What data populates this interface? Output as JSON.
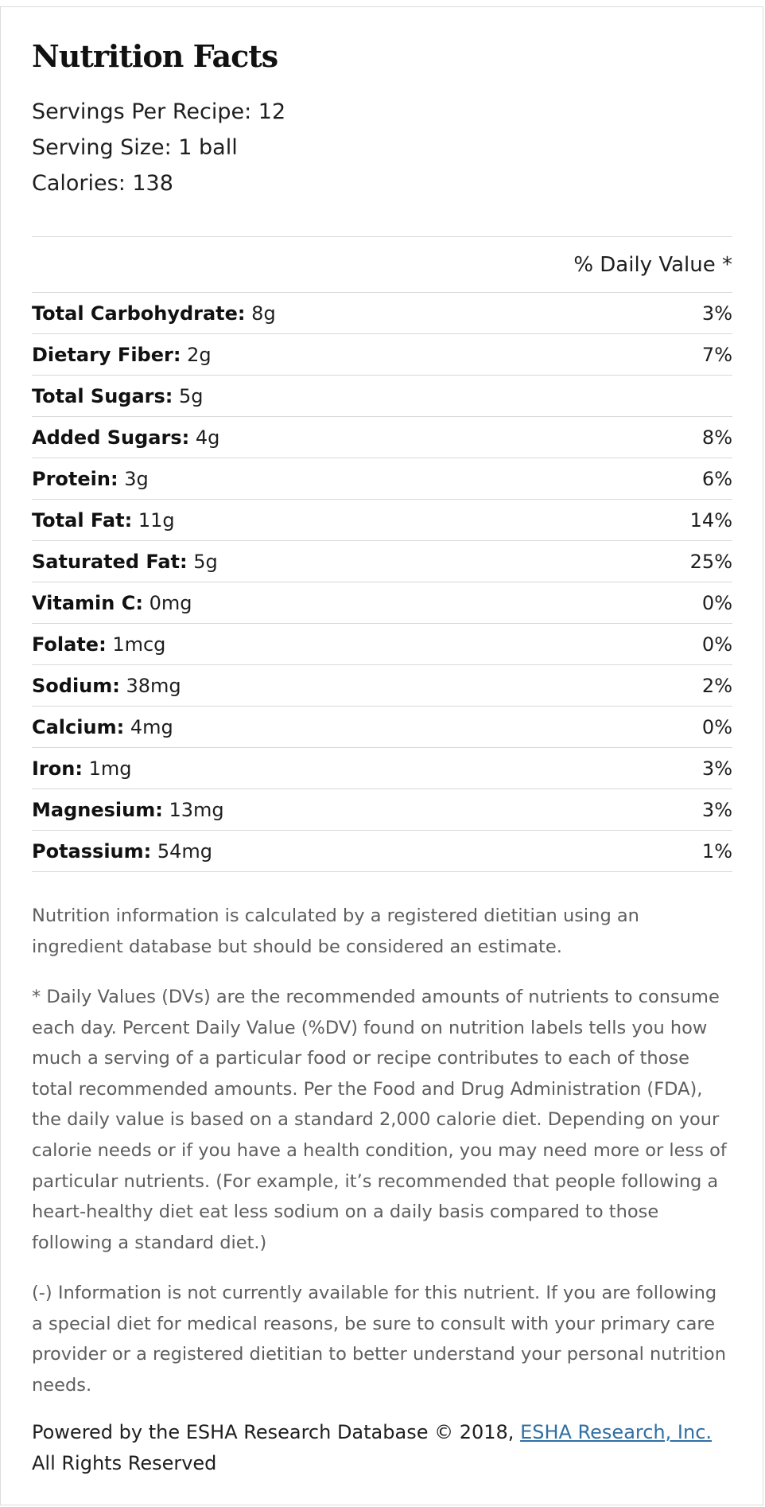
{
  "header": {
    "title": "Nutrition Facts",
    "servings_per_recipe": "Servings Per Recipe: 12",
    "serving_size": "Serving Size: 1 ball",
    "calories": "Calories: 138"
  },
  "table": {
    "daily_value_header": "% Daily Value *",
    "rows": [
      {
        "name": "Total Carbohydrate:",
        "amount": "8g",
        "pct": "3%"
      },
      {
        "name": "Dietary Fiber:",
        "amount": "2g",
        "pct": "7%"
      },
      {
        "name": "Total Sugars:",
        "amount": "5g",
        "pct": ""
      },
      {
        "name": "Added Sugars:",
        "amount": "4g",
        "pct": "8%"
      },
      {
        "name": "Protein:",
        "amount": "3g",
        "pct": "6%"
      },
      {
        "name": "Total Fat:",
        "amount": "11g",
        "pct": "14%"
      },
      {
        "name": "Saturated Fat:",
        "amount": "5g",
        "pct": "25%"
      },
      {
        "name": "Vitamin C:",
        "amount": "0mg",
        "pct": "0%"
      },
      {
        "name": "Folate:",
        "amount": "1mcg",
        "pct": "0%"
      },
      {
        "name": "Sodium:",
        "amount": "38mg",
        "pct": "2%"
      },
      {
        "name": "Calcium:",
        "amount": "4mg",
        "pct": "0%"
      },
      {
        "name": "Iron:",
        "amount": "1mg",
        "pct": "3%"
      },
      {
        "name": "Magnesium:",
        "amount": "13mg",
        "pct": "3%"
      },
      {
        "name": "Potassium:",
        "amount": "54mg",
        "pct": "1%"
      }
    ]
  },
  "notes": {
    "estimate": "Nutrition information is calculated by a registered dietitian using an ingredient database but should be considered an estimate.",
    "daily_values": "* Daily Values (DVs) are the recommended amounts of nutrients to consume each day. Percent Daily Value (%DV) found on nutrition labels tells you how much a serving of a particular food or recipe contributes to each of those total recommended amounts. Per the Food and Drug Administration (FDA), the daily value is based on a standard 2,000 calorie diet. Depending on your calorie needs or if you have a health condition, you may need more or less of particular nutrients. (For example, it’s recommended that people following a heart-healthy diet eat less sodium on a daily basis compared to those following a standard diet.)",
    "unavailable": "(-) Information is not currently available for this nutrient. If you are following a special diet for medical reasons, be sure to consult with your primary care provider or a registered dietitian to better understand your personal nutrition needs."
  },
  "footer": {
    "powered_prefix": "Powered by the ESHA Research Database © 2018, ",
    "link_label": "ESHA Research, Inc.",
    "powered_suffix": " All Rights Reserved"
  },
  "colors": {
    "link": "#2f6fa3",
    "note_text": "#5e5e5e",
    "rule": "#d9d9d9"
  }
}
